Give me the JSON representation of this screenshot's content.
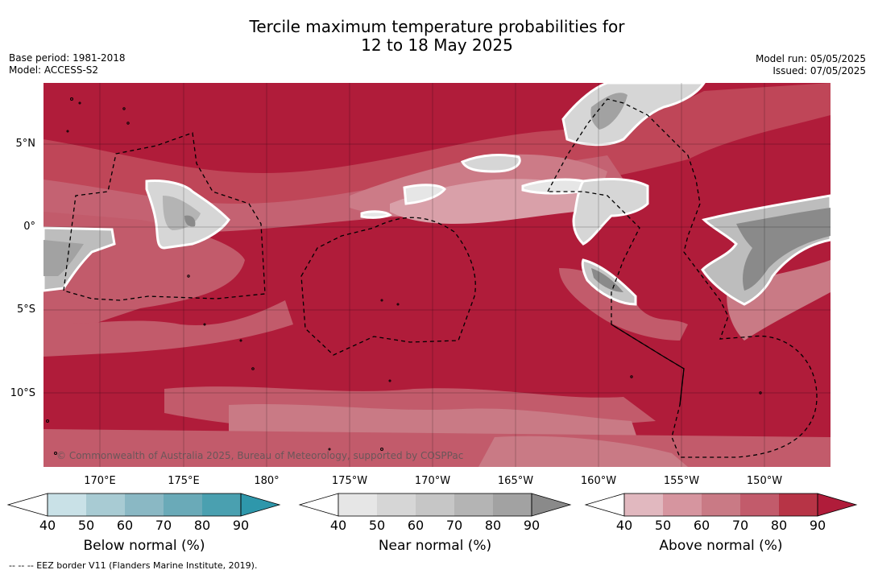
{
  "title_line1": "Tercile maximum temperature probabilities for",
  "title_line2": "12 to 18 May 2025",
  "meta_left": {
    "base_period": "Base period: 1981-2018",
    "model": "Model: ACCESS-S2"
  },
  "meta_right": {
    "model_run": "Model run: 05/05/2025",
    "issued": "Issued: 07/05/2025"
  },
  "lat_labels": [
    "5°N",
    "0°",
    "5°S",
    "10°S"
  ],
  "lon_labels": [
    "170°E",
    "175°E",
    "180°",
    "175°W",
    "170°W",
    "165°W",
    "160°W",
    "155°W",
    "150°W"
  ],
  "copyright": "© Commonwealth of Australia 2025, Bureau of Meteorology, supported by COSPPac",
  "colorbars": [
    {
      "title": "Below normal (%)",
      "ticks": [
        "40",
        "50",
        "60",
        "70",
        "80",
        "90"
      ],
      "colors": [
        "#ffffff",
        "#c9e1e7",
        "#a8cbd3",
        "#8ab8c4",
        "#6aaab8",
        "#4aa0b0",
        "#2e97ab"
      ]
    },
    {
      "title": "Near normal (%)",
      "ticks": [
        "40",
        "50",
        "60",
        "70",
        "80",
        "90"
      ],
      "colors": [
        "#ffffff",
        "#e6e6e6",
        "#d6d6d6",
        "#c6c6c6",
        "#b4b4b4",
        "#a2a2a2",
        "#8a8a8a"
      ]
    },
    {
      "title": "Above normal (%)",
      "ticks": [
        "40",
        "50",
        "60",
        "70",
        "80",
        "90"
      ],
      "colors": [
        "#ffffff",
        "#e1b8bf",
        "#d6959f",
        "#c97a85",
        "#c25b6b",
        "#b73446",
        "#b01c3a"
      ]
    }
  ],
  "footnote": "--  --  -- EEZ border V11 (Flanders Marine Institute, 2019).",
  "colors": {
    "above_dominant": "#b01c3a",
    "near_dominant": "#8a8a8a"
  }
}
